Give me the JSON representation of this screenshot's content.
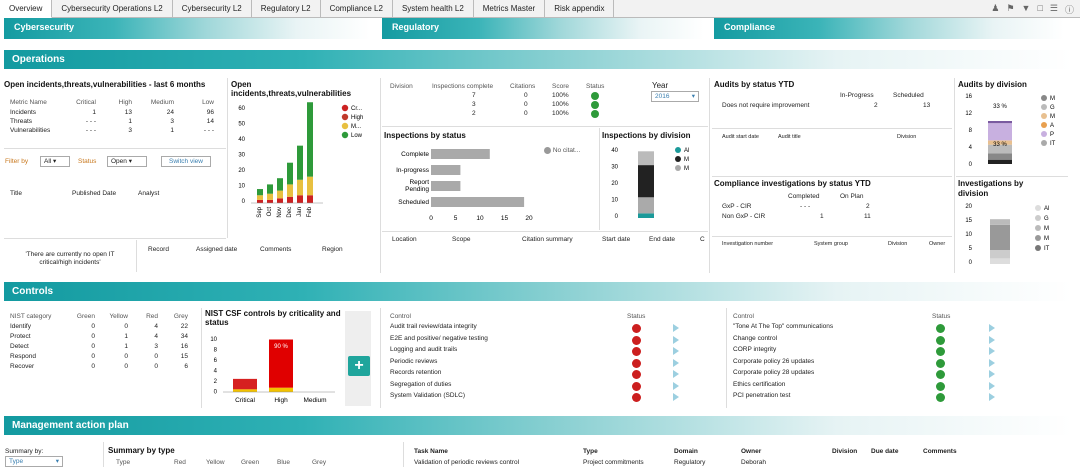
{
  "tabs": [
    "Overview",
    "Cybersecurity Operations L2",
    "Cybersecurity L2",
    "Regulatory L2",
    "Compliance L2",
    "System health L2",
    "Metrics Master",
    "Risk appendix"
  ],
  "toolbar_icons": [
    "user-icon",
    "bookmark-icon",
    "filter-icon",
    "select-icon",
    "menu-icon",
    "help-icon"
  ],
  "top_bands": [
    "Cybersecurity",
    "Regulatory",
    "Compliance"
  ],
  "sections": {
    "operations": "Operations",
    "controls": "Controls",
    "map": "Management action plan"
  },
  "open_incidents": {
    "title": "Open incidents,threats,vulnerabilities - last 6 months",
    "headers": [
      "Metric Name",
      "Critical",
      "High",
      "Medium",
      "Low"
    ],
    "rows": [
      [
        "Incidents",
        "1",
        "13",
        "24",
        "96"
      ],
      [
        "Threats",
        "- - -",
        "1",
        "3",
        "14"
      ],
      [
        "Vulnerabilities",
        "- - -",
        "3",
        "1",
        "- - -"
      ]
    ],
    "filter_label": "Filter by",
    "filter_value": "All",
    "status_label": "Status",
    "status_value": "Open",
    "switch_label": "Switch view",
    "list_headers": [
      "Title",
      "Published Date",
      "Analyst"
    ],
    "empty_msg": "'There are currently no open IT critical/high incidents'"
  },
  "incident_chart": {
    "title": "Open incidents,threats,vulnerabilities",
    "y_ticks": [
      "60",
      "50",
      "40",
      "30",
      "20",
      "10",
      "0"
    ],
    "legend": [
      {
        "label": "Cr...",
        "color": "#cc2222"
      },
      {
        "label": "High",
        "color": "#c0392b"
      },
      {
        "label": "M...",
        "color": "#e8c040"
      },
      {
        "label": "Low",
        "color": "#2e9a3a"
      }
    ],
    "months": [
      "Sep",
      "Oct",
      "Nov",
      "Dec",
      "Jan",
      "Feb"
    ]
  },
  "record_headers": [
    "Record",
    "Assigned date",
    "Comments",
    "Region"
  ],
  "inspections_table": {
    "headers": [
      "Division",
      "Inspections complete",
      "Citations",
      "Score",
      "Status"
    ],
    "rows": [
      [
        "7",
        "0",
        "100%"
      ],
      [
        "3",
        "0",
        "100%"
      ],
      [
        "2",
        "0",
        "100%"
      ]
    ]
  },
  "year_label": "Year",
  "year_value": "2016",
  "inspections_status": {
    "title": "Inspections by status",
    "categories": [
      "Complete",
      "In-progress",
      "Report Pending",
      "Scheduled"
    ],
    "x_ticks": [
      "0",
      "5",
      "10",
      "15",
      "20"
    ],
    "legend": "No citat...",
    "list_headers": [
      "Location",
      "Scope",
      "Citation summary",
      "Start date",
      "End date",
      "C"
    ]
  },
  "inspections_division": {
    "title": "Inspections by division",
    "y_ticks": [
      "40",
      "30",
      "20",
      "10",
      "0"
    ],
    "legend": [
      "Al",
      "M",
      "M"
    ]
  },
  "audits_status": {
    "title": "Audits by status YTD",
    "col1": "In-Progress",
    "col2": "Scheduled",
    "row_label": "Does not require improvement",
    "v1": "2",
    "v2": "13",
    "list_headers": [
      "Audit start date",
      "Audit title",
      "Division"
    ]
  },
  "audits_division": {
    "title": "Audits by division",
    "y_ticks": [
      "16",
      "12",
      "8",
      "4",
      "0"
    ],
    "pct1": "33 %",
    "pct2": "33 %",
    "legend": [
      "M",
      "G",
      "M",
      "A",
      "P",
      "IT"
    ]
  },
  "compliance_inv": {
    "title": "Compliance investigations by status YTD",
    "col1": "Completed",
    "col2": "On Plan",
    "rows": [
      [
        "GxP - CIR",
        "- - -",
        "2"
      ],
      [
        "Non GxP - CIR",
        "1",
        "11"
      ]
    ],
    "list_headers": [
      "Investigation number",
      "System group",
      "Division",
      "Owner"
    ]
  },
  "investigations_division": {
    "title": "Investigations by division",
    "y_ticks": [
      "20",
      "15",
      "10",
      "5",
      "0"
    ],
    "legend": [
      "Al",
      "G",
      "M",
      "M",
      "IT"
    ]
  },
  "nist_table": {
    "headers": [
      "NIST category",
      "Green",
      "Yellow",
      "Red",
      "Grey"
    ],
    "rows": [
      [
        "Identify",
        "0",
        "0",
        "4",
        "22"
      ],
      [
        "Protect",
        "0",
        "1",
        "4",
        "34"
      ],
      [
        "Detect",
        "0",
        "1",
        "3",
        "16"
      ],
      [
        "Respond",
        "0",
        "0",
        "0",
        "15"
      ],
      [
        "Recover",
        "0",
        "0",
        "0",
        "6"
      ]
    ]
  },
  "nist_chart": {
    "title": "NIST CSF controls by criticality and status",
    "y_ticks": [
      "10",
      "8",
      "6",
      "4",
      "2",
      "0"
    ],
    "x_labels": [
      "Critical",
      "High",
      "Medium"
    ],
    "pct": "90 %"
  },
  "controls_left": {
    "headers": [
      "Control",
      "Status"
    ],
    "rows": [
      "Audit trail review/data integrity",
      "E2E and positive/ negative testing",
      "Logging and audit trails",
      "Periodic reviews",
      "Records retention",
      "Segregation of duties",
      "System Validation (SDLC)"
    ]
  },
  "controls_right": {
    "headers": [
      "Control",
      "Status"
    ],
    "rows": [
      "\"Tone At The Top\" communications",
      "Change control",
      "CORP integrity",
      "Corporate policy 26 updates",
      "Corporate policy 28 updates",
      "Ethics certification",
      "PCI penetration test"
    ]
  },
  "map": {
    "summary_label": "Summary by:",
    "summary_value": "Type",
    "summary_title": "Summary by type",
    "summary_headers": [
      "Type",
      "Red",
      "Yellow",
      "Green",
      "Blue",
      "Grey"
    ],
    "task_headers": [
      "Task Name",
      "Type",
      "Domain",
      "Owner",
      "Division",
      "Due date",
      "Comments"
    ],
    "task_row": [
      "Validation of periodic reviews control",
      "Project commitments",
      "Regulatory",
      "Deborah"
    ]
  },
  "colors": {
    "teal": "#139aa0",
    "green": "#2e9a3a",
    "red": "#cc2222",
    "yellow": "#e8c040",
    "grey": "#999999",
    "blue": "#9ccfe0"
  }
}
